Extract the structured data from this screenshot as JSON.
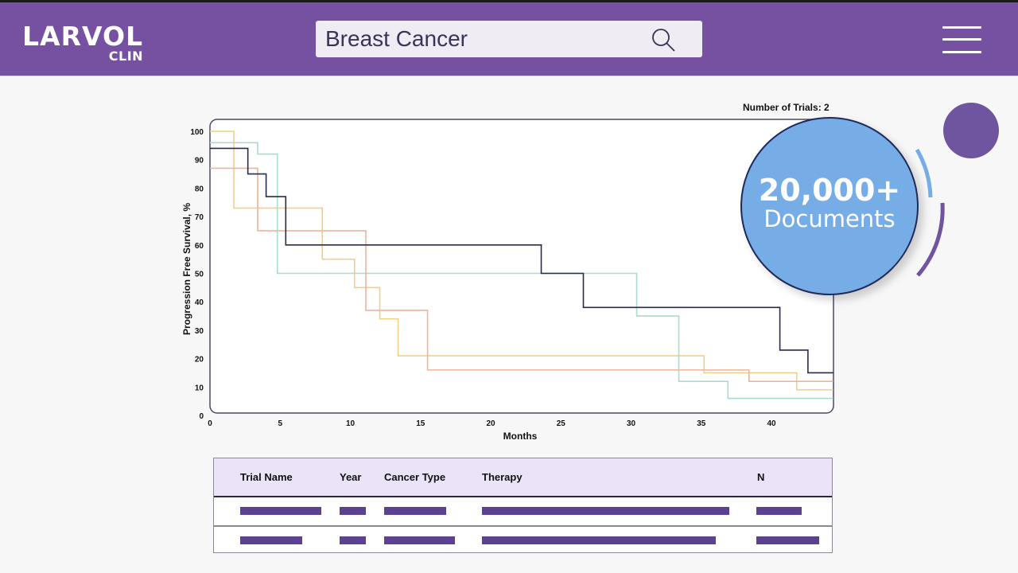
{
  "header": {
    "logo_main": "LARVOL",
    "logo_sub": "CLIN",
    "search_value": "Breast Cancer",
    "search_icon": "search-icon",
    "menu_icon": "hamburger-menu-icon",
    "brand_color": "#7651a1"
  },
  "trials_label": "Number of Trials: 2",
  "bubble": {
    "number": "20,000+",
    "label": "Documents",
    "color": "#77ade6"
  },
  "table": {
    "headers": [
      "Trial Name",
      "Year",
      "Cancer Type",
      "Therapy",
      "N"
    ],
    "rows_redacted": 2
  },
  "chart_data": {
    "type": "line",
    "subtype": "kaplan-meier-step",
    "title": "",
    "xlabel": "Months",
    "ylabel": "Progression Free Survival, %",
    "xlim": [
      0,
      44.4
    ],
    "ylim": [
      0,
      100
    ],
    "xticks": [
      0,
      5,
      10,
      15,
      20,
      25,
      30,
      35,
      40
    ],
    "yticks": [
      0,
      10,
      20,
      30,
      40,
      50,
      60,
      70,
      80,
      90,
      100
    ],
    "grid": false,
    "legend": "none",
    "series": [
      {
        "name": "Yellow arm",
        "color": "#f2cf86",
        "x": [
          0,
          1.7,
          8.0,
          10.3,
          12.1,
          13.4,
          35.2,
          41.8,
          44.4
        ],
        "y": [
          100,
          73,
          55,
          45,
          34,
          21,
          15,
          9,
          9
        ]
      },
      {
        "name": "Teal arm",
        "color": "#a9dccb",
        "x": [
          0,
          3.4,
          4.8,
          30.4,
          33.4,
          36.9,
          44.4
        ],
        "y": [
          96,
          92,
          50,
          35,
          12,
          6,
          6
        ]
      },
      {
        "name": "Orange arm",
        "color": "#f0b39a",
        "x": [
          0,
          3.4,
          11.1,
          15.5,
          38.4,
          44.4
        ],
        "y": [
          87,
          65,
          37,
          16,
          12,
          12
        ]
      },
      {
        "name": "Navy arm",
        "color": "#2a2a4a",
        "x": [
          0,
          2.7,
          4.0,
          5.4,
          23.6,
          26.6,
          40.6,
          42.6,
          44.4
        ],
        "y": [
          94,
          85,
          77,
          60,
          50,
          38,
          23,
          15,
          15
        ]
      }
    ]
  }
}
